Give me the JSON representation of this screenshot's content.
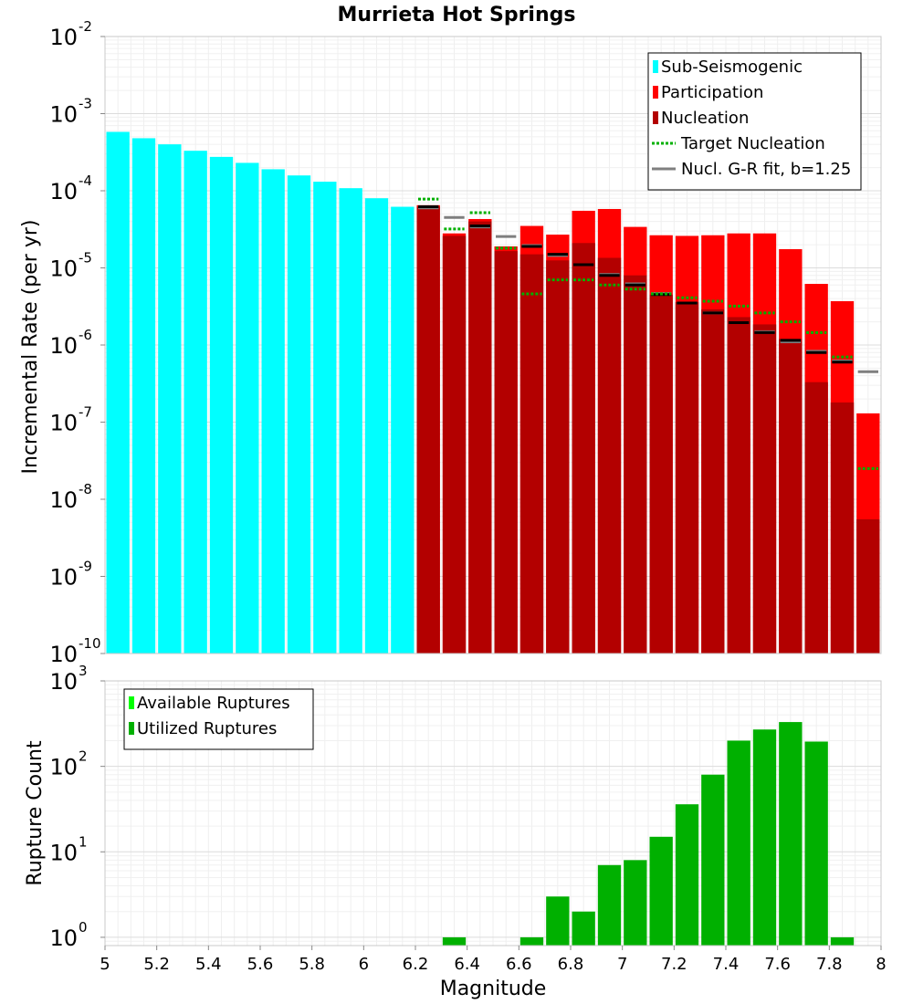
{
  "chart_data": [
    {
      "type": "bar",
      "scale": "log",
      "title": "Murrieta Hot Springs",
      "ylabel": "Incremental Rate (per yr)",
      "xlabel": "",
      "xlim": [
        5,
        8
      ],
      "ylim": [
        1e-10,
        0.01
      ],
      "bin_width": 0.1,
      "x": [
        5.05,
        5.15,
        5.25,
        5.35,
        5.45,
        5.55,
        5.65,
        5.75,
        5.85,
        5.95,
        6.05,
        6.15,
        6.25,
        6.35,
        6.45,
        6.55,
        6.65,
        6.75,
        6.85,
        6.95,
        7.05,
        7.15,
        7.25,
        7.35,
        7.45,
        7.55,
        7.65,
        7.75,
        7.85,
        7.95
      ],
      "y_ticks": [
        {
          "base": "10",
          "exp": "-10",
          "value": 1e-10
        },
        {
          "base": "10",
          "exp": "-9",
          "value": 1e-09
        },
        {
          "base": "10",
          "exp": "-8",
          "value": 1e-08
        },
        {
          "base": "10",
          "exp": "-7",
          "value": 1e-07
        },
        {
          "base": "10",
          "exp": "-6",
          "value": 1e-06
        },
        {
          "base": "10",
          "exp": "-5",
          "value": 1e-05
        },
        {
          "base": "10",
          "exp": "-4",
          "value": 0.0001
        },
        {
          "base": "10",
          "exp": "-3",
          "value": 0.001
        },
        {
          "base": "10",
          "exp": "-2",
          "value": 0.01
        }
      ],
      "legend": {
        "position": "top-right",
        "entries": [
          {
            "label": "Sub-Seismogenic",
            "color": "#00ffff",
            "style": "bar"
          },
          {
            "label": "Participation",
            "color": "#ff0000",
            "style": "bar"
          },
          {
            "label": "Nucleation",
            "color": "#b30000",
            "style": "bar"
          },
          {
            "label": "Target Nucleation",
            "color": "#00b000",
            "style": "dotted"
          },
          {
            "label": "Nucl. G-R fit, b=1.25",
            "color": "#7f7f7f",
            "style": "line"
          }
        ]
      },
      "series": [
        {
          "name": "Sub-Seismogenic",
          "color": "#00ffff",
          "values": [
            0.00058,
            0.00048,
            0.0004,
            0.00033,
            0.000275,
            0.00023,
            0.00019,
            0.000158,
            0.000131,
            0.000108,
            8e-05,
            6.2e-05,
            null,
            null,
            null,
            null,
            null,
            null,
            null,
            null,
            null,
            null,
            null,
            null,
            null,
            null,
            null,
            null,
            null,
            null
          ]
        },
        {
          "name": "Participation",
          "color": "#ff0000",
          "values": [
            null,
            null,
            null,
            null,
            null,
            null,
            null,
            null,
            null,
            null,
            null,
            null,
            6.5e-05,
            2.8e-05,
            4.3e-05,
            1.9e-05,
            3.5e-05,
            2.7e-05,
            5.5e-05,
            5.8e-05,
            3.4e-05,
            2.65e-05,
            2.6e-05,
            2.65e-05,
            2.8e-05,
            2.8e-05,
            1.75e-05,
            6.2e-06,
            3.7e-06,
            1.3e-07
          ]
        },
        {
          "name": "Nucleation",
          "color": "#b30000",
          "values": [
            null,
            null,
            null,
            null,
            null,
            null,
            null,
            null,
            null,
            null,
            null,
            null,
            6.2e-05,
            2.6e-05,
            4e-05,
            1.65e-05,
            1.5e-05,
            1.25e-05,
            2.1e-05,
            1.35e-05,
            8e-06,
            4.5e-06,
            3.6e-06,
            2.9e-06,
            2.3e-06,
            1.85e-06,
            1.2e-06,
            3.3e-07,
            1.8e-07,
            5.5e-09
          ]
        },
        {
          "name": "Target Nucleation",
          "color": "#00b000",
          "values": [
            null,
            null,
            null,
            null,
            null,
            null,
            null,
            null,
            null,
            null,
            null,
            null,
            7.8e-05,
            3.2e-05,
            5.2e-05,
            1.8e-05,
            4.6e-06,
            7e-06,
            7e-06,
            6e-06,
            5.3e-06,
            4.6e-06,
            4.1e-06,
            3.7e-06,
            3.2e-06,
            2.6e-06,
            2e-06,
            1.45e-06,
            7e-07,
            2.5e-08
          ]
        },
        {
          "name": "Nucl. G-R fit, b=1.25",
          "color": "#7f7f7f",
          "values": [
            null,
            null,
            null,
            null,
            null,
            null,
            null,
            null,
            null,
            null,
            null,
            null,
            6e-05,
            4.5e-05,
            3.4e-05,
            2.55e-05,
            1.95e-05,
            1.45e-05,
            1.1e-05,
            8.2e-06,
            6.2e-06,
            4.65e-06,
            3.5e-06,
            2.6e-06,
            1.95e-06,
            1.48e-06,
            1.1e-06,
            8.3e-07,
            6.2e-07,
            4.5e-07
          ]
        },
        {
          "name": "Nucleation (bin mark)",
          "color": "#000000",
          "values": [
            null,
            null,
            null,
            null,
            null,
            null,
            null,
            null,
            null,
            null,
            null,
            null,
            6.2e-05,
            null,
            3.5e-05,
            null,
            1.9e-05,
            1.5e-05,
            1.1e-05,
            8e-06,
            6e-06,
            4.5e-06,
            3.5e-06,
            2.6e-06,
            1.95e-06,
            1.45e-06,
            1.15e-06,
            8e-07,
            6e-07,
            null
          ]
        }
      ]
    },
    {
      "type": "bar",
      "scale": "log",
      "title": "",
      "ylabel": "Rupture Count",
      "xlabel": "Magnitude",
      "xlim": [
        5,
        8
      ],
      "ylim": [
        0.8,
        1000
      ],
      "bin_width": 0.1,
      "x": [
        5.05,
        5.15,
        5.25,
        5.35,
        5.45,
        5.55,
        5.65,
        5.75,
        5.85,
        5.95,
        6.05,
        6.15,
        6.25,
        6.35,
        6.45,
        6.55,
        6.65,
        6.75,
        6.85,
        6.95,
        7.05,
        7.15,
        7.25,
        7.35,
        7.45,
        7.55,
        7.65,
        7.75,
        7.85,
        7.95
      ],
      "x_ticks": [
        "5",
        "5.2",
        "5.4",
        "5.6",
        "5.8",
        "6",
        "6.2",
        "6.4",
        "6.6",
        "6.8",
        "7",
        "7.2",
        "7.4",
        "7.6",
        "7.8",
        "8"
      ],
      "y_ticks": [
        {
          "base": "10",
          "exp": "0",
          "value": 1
        },
        {
          "base": "10",
          "exp": "1",
          "value": 10
        },
        {
          "base": "10",
          "exp": "2",
          "value": 100
        },
        {
          "base": "10",
          "exp": "3",
          "value": 1000
        }
      ],
      "legend": {
        "position": "top-left",
        "entries": [
          {
            "label": "Available Ruptures",
            "color": "#00ff00",
            "style": "bar"
          },
          {
            "label": "Utilized Ruptures",
            "color": "#00b000",
            "style": "bar"
          }
        ]
      },
      "series": [
        {
          "name": "Utilized Ruptures",
          "color": "#00b000",
          "values": [
            null,
            null,
            null,
            null,
            null,
            null,
            null,
            null,
            null,
            null,
            null,
            null,
            null,
            1,
            null,
            null,
            1,
            3,
            2,
            7,
            8,
            15,
            36,
            80,
            200,
            270,
            330,
            195,
            1,
            null
          ]
        }
      ]
    }
  ]
}
